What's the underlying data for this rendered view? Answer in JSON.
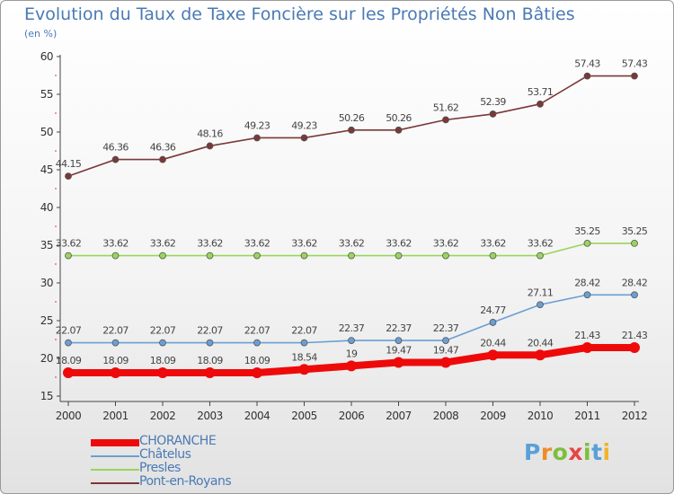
{
  "chart_data": {
    "type": "line",
    "title": "Evolution du Taux de Taxe Foncière sur les Propriétés Non Bâties",
    "ylabel": "(en %)",
    "xlabel": "",
    "ylim": [
      15,
      60
    ],
    "yticks": [
      "15",
      "20",
      "25",
      "30",
      "35",
      "40",
      "45",
      "50",
      "55",
      "60"
    ],
    "x": [
      "2000",
      "2001",
      "2002",
      "2003",
      "2004",
      "2005",
      "2006",
      "2007",
      "2008",
      "2009",
      "2010",
      "2011",
      "2012"
    ],
    "series": [
      {
        "name": "Pont-en-Royans",
        "color": "#7a3838",
        "values": [
          44.15,
          46.36,
          46.36,
          48.16,
          49.23,
          49.23,
          50.26,
          50.26,
          51.62,
          52.39,
          53.71,
          57.43,
          57.43
        ],
        "labels": [
          "44.15",
          "46.36",
          "46.36",
          "48.16",
          "49.23",
          "49.23",
          "50.26",
          "50.26",
          "51.62",
          "52.39",
          "53.71",
          "57.43",
          "57.43"
        ]
      },
      {
        "name": "Presles",
        "color": "#99d55a",
        "values": [
          33.62,
          33.62,
          33.62,
          33.62,
          33.62,
          33.62,
          33.62,
          33.62,
          33.62,
          33.62,
          33.62,
          35.25,
          35.25
        ],
        "labels": [
          "33.62",
          "33.62",
          "33.62",
          "33.62",
          "33.62",
          "33.62",
          "33.62",
          "33.62",
          "33.62",
          "33.62",
          "33.62",
          "35.25",
          "35.25"
        ]
      },
      {
        "name": "Châtelus",
        "color": "#6a9fd3",
        "values": [
          22.07,
          22.07,
          22.07,
          22.07,
          22.07,
          22.07,
          22.37,
          22.37,
          22.37,
          24.77,
          27.11,
          28.42,
          28.42
        ],
        "labels": [
          "22.07",
          "22.07",
          "22.07",
          "22.07",
          "22.07",
          "22.07",
          "22.37",
          "22.37",
          "22.37",
          "24.77",
          "27.11",
          "28.42",
          "28.42"
        ]
      },
      {
        "name": "CHORANCHE",
        "color": "#ee0a0a",
        "values": [
          18.09,
          18.09,
          18.09,
          18.09,
          18.09,
          18.54,
          19,
          19.47,
          19.47,
          20.44,
          20.44,
          21.43,
          21.43
        ],
        "labels": [
          "18.09",
          "18.09",
          "18.09",
          "18.09",
          "18.09",
          "18.54",
          "19",
          "19.47",
          "19.47",
          "20.44",
          "20.44",
          "21.43",
          "21.43"
        ]
      }
    ],
    "legend": [
      "CHORANCHE",
      "Châtelus",
      "Presles",
      "Pont-en-Royans"
    ],
    "legend_position": "bottom-left"
  },
  "brand": {
    "letters": [
      "P",
      "r",
      "o",
      "x",
      "i",
      "t",
      "i"
    ],
    "colors": [
      "#5aa0d8",
      "#f08c28",
      "#7cbf3c",
      "#e64646",
      "#7cbf3c",
      "#5aa0d8",
      "#f0b428"
    ]
  }
}
